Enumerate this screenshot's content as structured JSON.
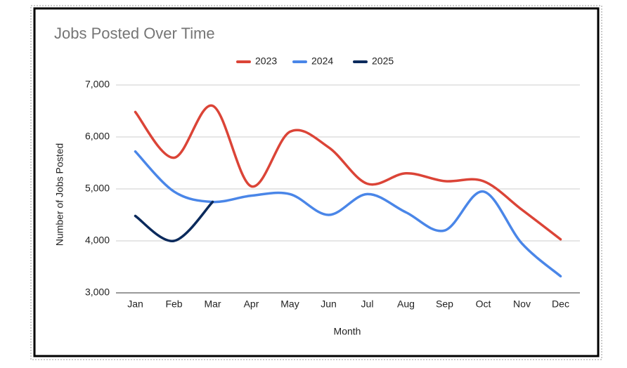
{
  "chart_data": {
    "type": "line",
    "title": "Jobs Posted Over Time",
    "x_label": "Month",
    "y_label": "Number of Jobs Posted",
    "categories": [
      "Jan",
      "Feb",
      "Mar",
      "Apr",
      "May",
      "Jun",
      "Jul",
      "Aug",
      "Sep",
      "Oct",
      "Nov",
      "Dec"
    ],
    "series": [
      {
        "name": "2023",
        "color": "#db4437",
        "values": [
          6480,
          5600,
          6600,
          5050,
          6100,
          5800,
          5100,
          5300,
          5150,
          5150,
          4600,
          4030
        ]
      },
      {
        "name": "2024",
        "color": "#4a86e8",
        "values": [
          5720,
          4950,
          4750,
          4870,
          4900,
          4500,
          4900,
          4550,
          4200,
          4950,
          3950,
          3320
        ]
      },
      {
        "name": "2025",
        "color": "#0b2a5c",
        "values": [
          4480,
          4000,
          4750,
          null,
          null,
          null,
          null,
          null,
          null,
          null,
          null,
          null
        ]
      }
    ],
    "ylim": [
      3000,
      7000
    ],
    "yticks": [
      {
        "value": 3000,
        "label": "3,000"
      },
      {
        "value": 4000,
        "label": "4,000"
      },
      {
        "value": 5000,
        "label": "5,000"
      },
      {
        "value": 6000,
        "label": "6,000"
      },
      {
        "value": 7000,
        "label": "7,000"
      }
    ],
    "grid": true,
    "legend": "top"
  }
}
